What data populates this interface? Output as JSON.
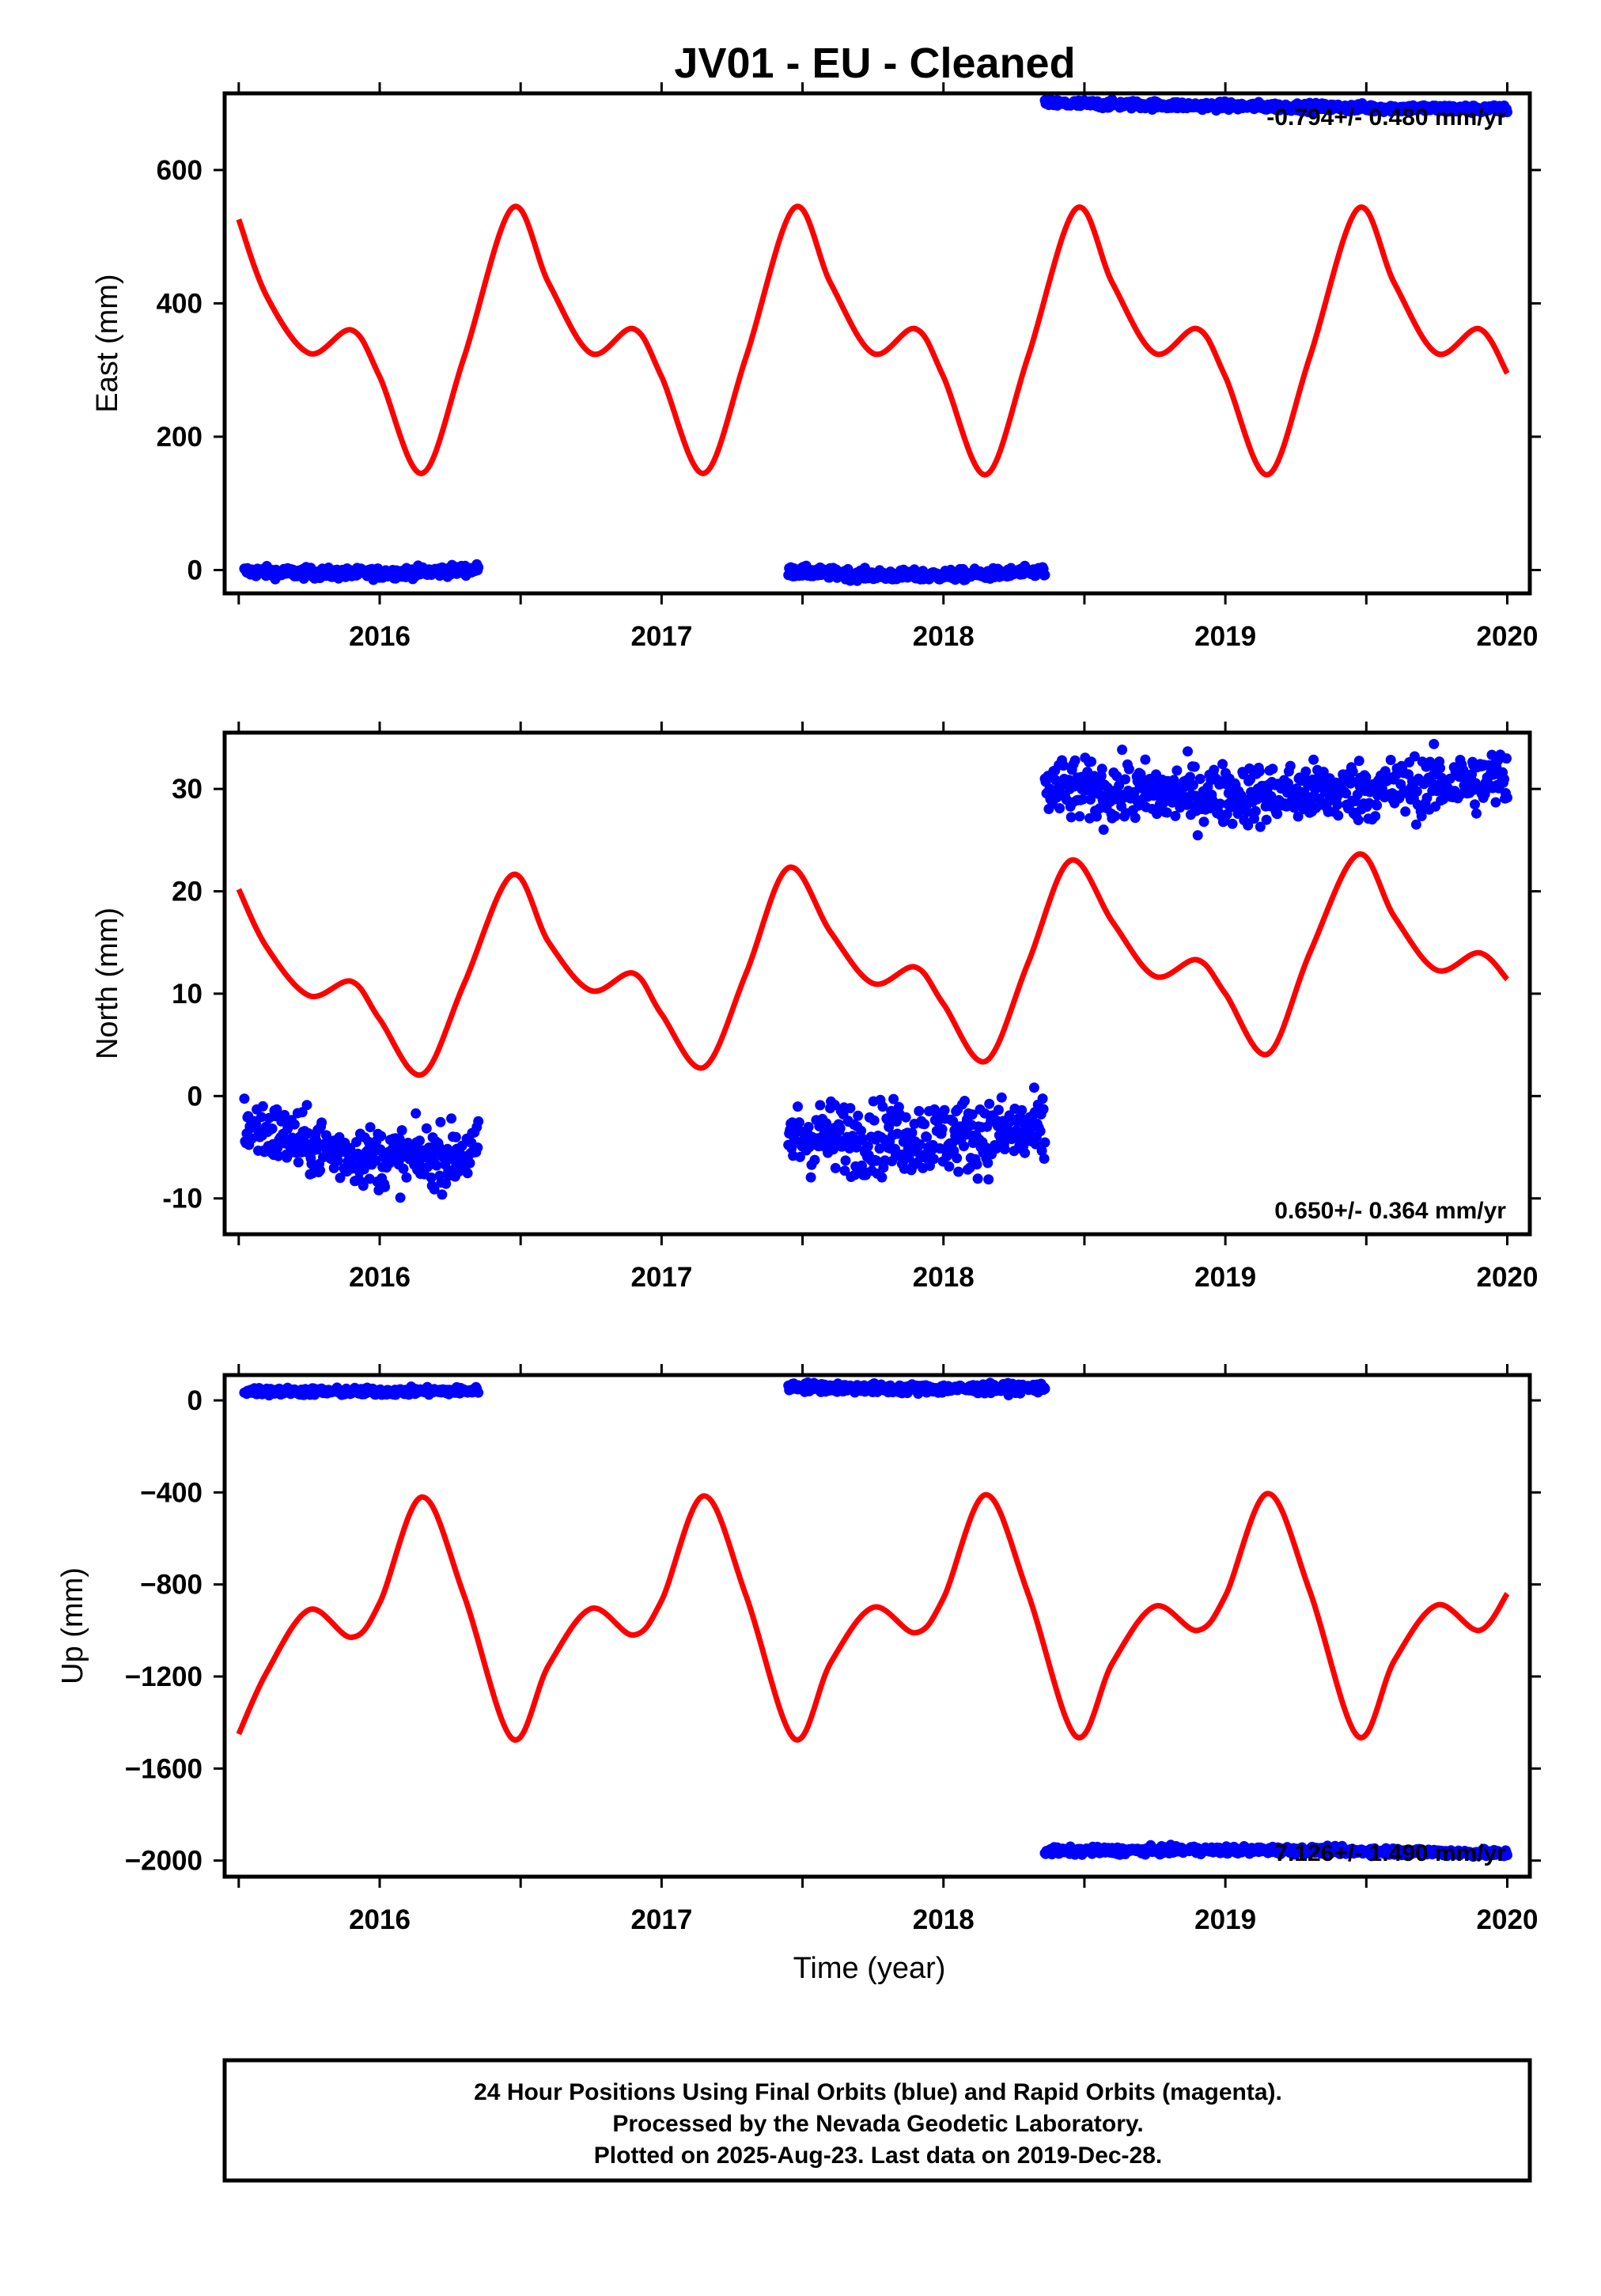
{
  "title": "JV01  - EU - Cleaned",
  "colors": {
    "final_orbits": "#0000ff",
    "model_fit": "#ff0000",
    "frame": "#000000",
    "background": "#ffffff"
  },
  "chart_data": [
    {
      "type": "scatter",
      "name": "east",
      "ylabel": "East (mm)",
      "xlabel": "",
      "xlim": [
        2015.45,
        2020.08
      ],
      "ylim": [
        -35,
        715
      ],
      "x_ticks": [
        "2016",
        "2017",
        "2018",
        "2019",
        "2020"
      ],
      "y_ticks": [
        "0",
        "200",
        "400",
        "600"
      ],
      "rate_label": "-0.794+/- 0.480 mm/yr",
      "rate_label_position": "top-right",
      "model_fit": {
        "segments": [
          [
            [
              2015.5,
              526
            ],
            [
              2015.6,
              410
            ],
            [
              2015.75,
              325
            ],
            [
              2015.9,
              360
            ],
            [
              2016.0,
              290
            ],
            [
              2016.15,
              145
            ],
            [
              2016.3,
              320
            ],
            [
              2016.47,
              543
            ],
            [
              2016.6,
              430
            ],
            [
              2016.75,
              325
            ],
            [
              2016.9,
              362
            ],
            [
              2017.0,
              290
            ],
            [
              2017.15,
              145
            ],
            [
              2017.3,
              320
            ],
            [
              2017.47,
              543
            ],
            [
              2017.6,
              430
            ],
            [
              2017.75,
              325
            ],
            [
              2017.9,
              362
            ],
            [
              2018.0,
              290
            ],
            [
              2018.15,
              143
            ],
            [
              2018.3,
              320
            ],
            [
              2018.47,
              542
            ],
            [
              2018.6,
              430
            ],
            [
              2018.75,
              325
            ],
            [
              2018.9,
              362
            ],
            [
              2019.0,
              290
            ],
            [
              2019.15,
              143
            ],
            [
              2019.3,
              320
            ],
            [
              2019.47,
              542
            ],
            [
              2019.6,
              430
            ],
            [
              2019.75,
              325
            ],
            [
              2019.9,
              362
            ],
            [
              2020.0,
              295
            ]
          ]
        ]
      },
      "final_orbits": [
        {
          "x_range": [
            2015.52,
            2016.35
          ],
          "y_mean": -5,
          "scatter": 4,
          "y_start": -2,
          "y_end": 1
        },
        {
          "x_range": [
            2017.45,
            2018.36
          ],
          "y_mean": -8,
          "scatter": 4,
          "y_start": -2,
          "y_end": -2
        },
        {
          "x_range": [
            2018.36,
            2020.0
          ],
          "y_mean": 695,
          "scatter": 3,
          "y_start": 700,
          "y_end": 691
        }
      ]
    },
    {
      "type": "scatter",
      "name": "north",
      "ylabel": "North (mm)",
      "xlabel": "",
      "xlim": [
        2015.45,
        2020.08
      ],
      "ylim": [
        -13.5,
        35.5
      ],
      "x_ticks": [
        "2016",
        "2017",
        "2018",
        "2019",
        "2020"
      ],
      "y_ticks": [
        "-10",
        "0",
        "10",
        "20",
        "30"
      ],
      "rate_label": "0.650+/- 0.364 mm/yr",
      "rate_label_position": "bottom-right",
      "model_fit": {
        "segments": [
          [
            [
              2015.5,
              20.2
            ],
            [
              2015.6,
              14.5
            ],
            [
              2015.75,
              9.8
            ],
            [
              2015.9,
              11.2
            ],
            [
              2016.0,
              7.5
            ],
            [
              2016.15,
              2.1
            ],
            [
              2016.3,
              11
            ],
            [
              2016.47,
              21.6
            ],
            [
              2016.6,
              15
            ],
            [
              2016.75,
              10.3
            ],
            [
              2016.9,
              12
            ],
            [
              2017.0,
              8
            ],
            [
              2017.15,
              2.8
            ],
            [
              2017.3,
              12
            ],
            [
              2017.45,
              22.3
            ],
            [
              2017.6,
              16
            ],
            [
              2017.75,
              11
            ],
            [
              2017.9,
              12.6
            ],
            [
              2018.0,
              9
            ],
            [
              2018.15,
              3.4
            ],
            [
              2018.3,
              13
            ],
            [
              2018.45,
              23
            ],
            [
              2018.6,
              17
            ],
            [
              2018.75,
              11.7
            ],
            [
              2018.9,
              13.3
            ],
            [
              2019.0,
              10
            ],
            [
              2019.15,
              4.1
            ],
            [
              2019.3,
              14
            ],
            [
              2019.47,
              23.6
            ],
            [
              2019.6,
              17.5
            ],
            [
              2019.75,
              12.3
            ],
            [
              2019.9,
              14
            ],
            [
              2020.0,
              11.4
            ]
          ]
        ]
      },
      "final_orbits": [
        {
          "x_range": [
            2015.52,
            2016.35
          ],
          "y_mean": -5.8,
          "scatter": 1.5,
          "y_start": -2.7,
          "y_end": -5.5
        },
        {
          "x_range": [
            2017.45,
            2018.36
          ],
          "y_mean": -4,
          "scatter": 1.8,
          "y_start": -4,
          "y_end": -3.5
        },
        {
          "x_range": [
            2018.36,
            2020.0
          ],
          "y_mean": 29.5,
          "scatter": 1.5,
          "y_start": 30,
          "y_end": 31
        }
      ]
    },
    {
      "type": "scatter",
      "name": "up",
      "ylabel": "Up (mm)",
      "xlabel": "Time (year)",
      "xlim": [
        2015.45,
        2020.08
      ],
      "ylim": [
        -2070,
        110
      ],
      "x_ticks": [
        "2016",
        "2017",
        "2018",
        "2019",
        "2020"
      ],
      "y_ticks": [
        "−2000",
        "−1600",
        "−1200",
        "−800",
        "−400",
        "0"
      ],
      "rate_label": "7.126+/- 1.490 mm/yr",
      "rate_label_position": "bottom-right",
      "model_fit": {
        "segments": [
          [
            [
              2015.5,
              -1450
            ],
            [
              2015.6,
              -1180
            ],
            [
              2015.75,
              -910
            ],
            [
              2015.9,
              -1030
            ],
            [
              2016.0,
              -880
            ],
            [
              2016.15,
              -420
            ],
            [
              2016.3,
              -850
            ],
            [
              2016.47,
              -1470
            ],
            [
              2016.6,
              -1150
            ],
            [
              2016.75,
              -905
            ],
            [
              2016.9,
              -1020
            ],
            [
              2017.0,
              -870
            ],
            [
              2017.15,
              -415
            ],
            [
              2017.3,
              -850
            ],
            [
              2017.47,
              -1470
            ],
            [
              2017.6,
              -1140
            ],
            [
              2017.75,
              -900
            ],
            [
              2017.9,
              -1010
            ],
            [
              2018.0,
              -860
            ],
            [
              2018.15,
              -410
            ],
            [
              2018.3,
              -840
            ],
            [
              2018.47,
              -1460
            ],
            [
              2018.6,
              -1140
            ],
            [
              2018.75,
              -895
            ],
            [
              2018.9,
              -1000
            ],
            [
              2019.0,
              -850
            ],
            [
              2019.15,
              -405
            ],
            [
              2019.3,
              -830
            ],
            [
              2019.47,
              -1460
            ],
            [
              2019.6,
              -1130
            ],
            [
              2019.75,
              -890
            ],
            [
              2019.9,
              -1000
            ],
            [
              2020.0,
              -840
            ]
          ]
        ]
      },
      "final_orbits": [
        {
          "x_range": [
            2015.52,
            2016.35
          ],
          "y_mean": 38,
          "scatter": 8,
          "y_start": 40,
          "y_end": 42
        },
        {
          "x_range": [
            2017.45,
            2018.36
          ],
          "y_mean": 50,
          "scatter": 10,
          "y_start": 60,
          "y_end": 55
        },
        {
          "x_range": [
            2018.36,
            2020.0
          ],
          "y_mean": -1955,
          "scatter": 8,
          "y_start": -1960,
          "y_end": -1970
        }
      ]
    }
  ],
  "footer": {
    "line1": "24 Hour Positions Using Final Orbits (blue) and Rapid Orbits (magenta).",
    "line2": "Processed by the Nevada Geodetic Laboratory.",
    "line3": "Plotted on 2025-Aug-23. Last data on 2019-Dec-28."
  }
}
